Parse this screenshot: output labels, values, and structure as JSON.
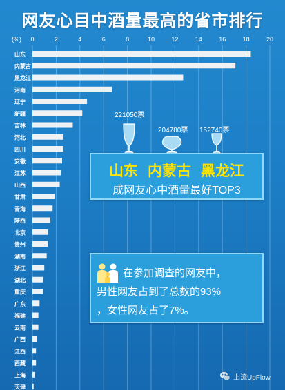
{
  "chart_data": {
    "type": "bar",
    "orientation": "horizontal",
    "title": "网友心目中酒量最高的省市排行",
    "xlabel": "(%)",
    "ylabel": "",
    "xlim": [
      0,
      20
    ],
    "xticks": [
      0,
      2,
      4,
      6,
      8,
      10,
      12,
      14,
      16,
      18,
      20
    ],
    "grid": true,
    "categories": [
      "山东",
      "内蒙古",
      "黑龙江",
      "河南",
      "辽宁",
      "新疆",
      "吉林",
      "河北",
      "四川",
      "安徽",
      "江苏",
      "山西",
      "甘肃",
      "青海",
      "陕西",
      "北京",
      "贵州",
      "湖南",
      "浙江",
      "湖北",
      "重庆",
      "广东",
      "福建",
      "云南",
      "广西",
      "江西",
      "西藏",
      "上海",
      "天津"
    ],
    "values": [
      18.4,
      17.1,
      12.7,
      6.7,
      4.6,
      4.2,
      3.4,
      2.6,
      2.6,
      2.5,
      2.4,
      2.3,
      1.9,
      1.7,
      1.5,
      1.3,
      1.3,
      1.2,
      1.0,
      0.9,
      0.9,
      0.6,
      0.5,
      0.5,
      0.4,
      0.3,
      0.3,
      0.2,
      0.1
    ]
  },
  "annotations": {
    "votes": [
      "221050票",
      "204780票",
      "152740票"
    ],
    "glass_icons": [
      "wine-glass-icon",
      "brandy-glass-icon",
      "small-glass-icon"
    ]
  },
  "callouts": {
    "top3": {
      "provinces": [
        "山东",
        "内蒙古",
        "黑龙江"
      ],
      "caption": "成网友心中酒量最好TOP3"
    },
    "gender": {
      "icon": "family-icon",
      "lines": [
        "在参加调查的网友中，",
        "男性网友占到了总数的93%",
        "，女性网友占了7%。"
      ]
    }
  },
  "watermark": {
    "icon": "wechat-icon",
    "label": "上流UpFlow"
  },
  "colors": {
    "background": "#1c7ec6",
    "bar": "#eef2f5",
    "highlight_text": "#ffe400",
    "callout_fill": "#2a9fdc",
    "callout_border": "#8fd8f6",
    "glass": "#a9dcf4"
  }
}
